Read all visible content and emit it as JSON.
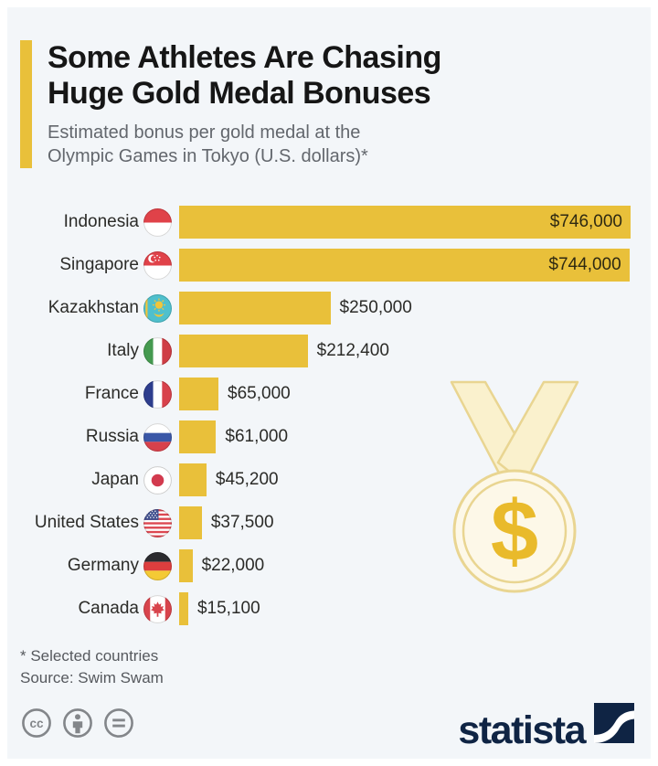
{
  "page": {
    "frame_color": "#ffffff",
    "card_color": "#f3f6f9",
    "accent_color": "#e9c03a"
  },
  "header": {
    "title_line1": "Some Athletes Are Chasing",
    "title_line2": "Huge Gold Medal Bonuses",
    "subtitle_line1": "Estimated bonus per gold medal at the",
    "subtitle_line2": "Olympic Games in Tokyo (U.S. dollars)*"
  },
  "chart_data": {
    "type": "bar",
    "orientation": "horizontal",
    "title": "Some Athletes Are Chasing Huge Gold Medal Bonuses",
    "subtitle": "Estimated bonus per gold medal at the Olympic Games in Tokyo (U.S. dollars)*",
    "categories": [
      "Indonesia",
      "Singapore",
      "Kazakhstan",
      "Italy",
      "France",
      "Russia",
      "Japan",
      "United States",
      "Germany",
      "Canada"
    ],
    "values": [
      746000,
      744000,
      250000,
      212400,
      65000,
      61000,
      45200,
      37500,
      22000,
      15100
    ],
    "value_labels": [
      "$746,000",
      "$744,000",
      "$250,000",
      "$212,400",
      "$65,000",
      "$61,000",
      "$45,200",
      "$37,500",
      "$22,000",
      "$15,100"
    ],
    "xlim": [
      0,
      746000
    ],
    "bar_color": "#e9c03a",
    "grid": false,
    "legend": false,
    "unit": "U.S. dollars"
  },
  "rows": [
    {
      "country": "Indonesia",
      "value": 746000,
      "label": "$746,000",
      "inside": true,
      "flag_icon": "indonesia-flag"
    },
    {
      "country": "Singapore",
      "value": 744000,
      "label": "$744,000",
      "inside": true,
      "flag_icon": "singapore-flag"
    },
    {
      "country": "Kazakhstan",
      "value": 250000,
      "label": "$250,000",
      "inside": false,
      "flag_icon": "kazakhstan-flag"
    },
    {
      "country": "Italy",
      "value": 212400,
      "label": "$212,400",
      "inside": false,
      "flag_icon": "italy-flag"
    },
    {
      "country": "France",
      "value": 65000,
      "label": "$65,000",
      "inside": false,
      "flag_icon": "france-flag"
    },
    {
      "country": "Russia",
      "value": 61000,
      "label": "$61,000",
      "inside": false,
      "flag_icon": "russia-flag"
    },
    {
      "country": "Japan",
      "value": 45200,
      "label": "$45,200",
      "inside": false,
      "flag_icon": "japan-flag"
    },
    {
      "country": "United States",
      "value": 37500,
      "label": "$37,500",
      "inside": false,
      "flag_icon": "united-states-flag"
    },
    {
      "country": "Germany",
      "value": 22000,
      "label": "$22,000",
      "inside": false,
      "flag_icon": "germany-flag"
    },
    {
      "country": "Canada",
      "value": 15100,
      "label": "$15,100",
      "inside": false,
      "flag_icon": "canada-flag"
    }
  ],
  "illustration": {
    "name": "gold-medal-with-dollar-sign",
    "medal_fill": "#faf1cd",
    "medal_stroke": "#e9d591",
    "dollar_color": "#e9ba2b"
  },
  "footer": {
    "footnote": "* Selected countries",
    "source": "Source: Swim Swam",
    "brand": "statista",
    "brand_color": "#0f2444",
    "license_icons": [
      "cc-icon",
      "attribution-icon",
      "equal-icon"
    ]
  }
}
